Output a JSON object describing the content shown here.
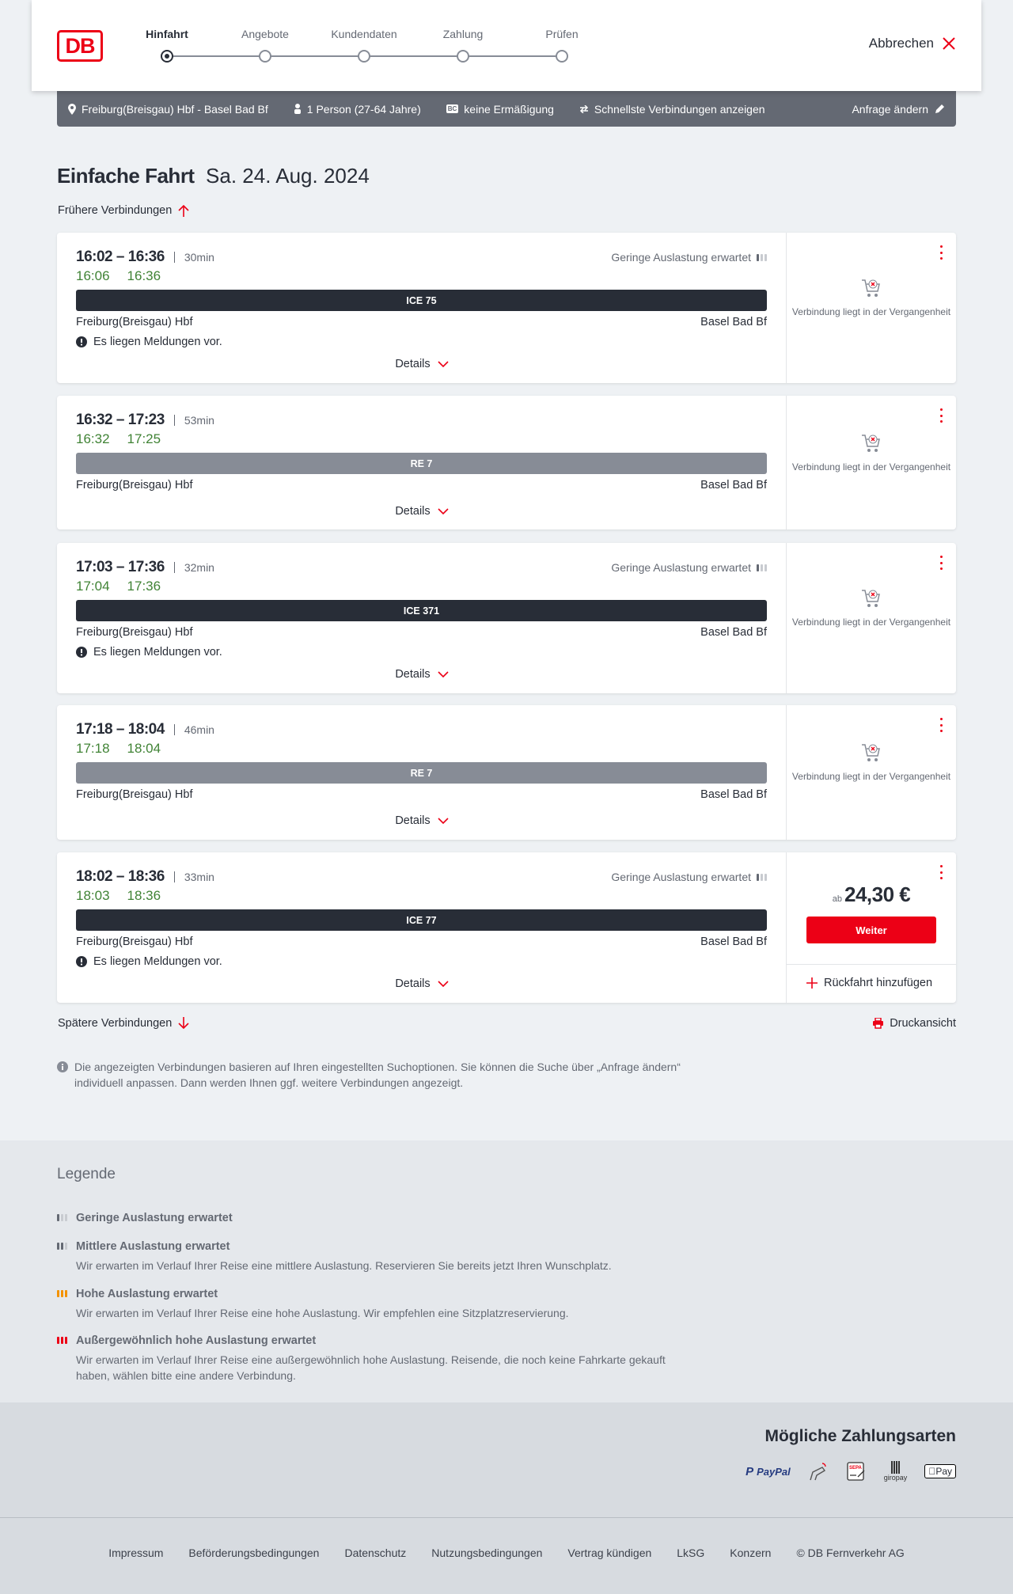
{
  "header": {
    "logo": "DB",
    "steps": [
      {
        "label": "Hinfahrt",
        "active": true
      },
      {
        "label": "Angebote"
      },
      {
        "label": "Kundendaten"
      },
      {
        "label": "Zahlung"
      },
      {
        "label": "Prüfen"
      }
    ],
    "cancel": "Abbrechen"
  },
  "summary": {
    "route": "Freiburg(Breisgau) Hbf - Basel Bad Bf",
    "passengers": "1 Person (27-64 Jahre)",
    "discount_badge": "BC",
    "discount": "keine Ermäßigung",
    "fastest": "Schnellste Verbindungen anzeigen",
    "edit": "Anfrage ändern"
  },
  "title": {
    "main": "Einfache Fahrt",
    "date": "Sa. 24. Aug. 2024"
  },
  "earlier": "Frühere Verbindungen",
  "later": "Spätere Verbindungen",
  "print": "Druckansicht",
  "colors": {
    "red": "#ec0016",
    "green": "#408335",
    "ice": "#282d37",
    "re": "#878c96",
    "bar": "#646973"
  },
  "connections": [
    {
      "times": "16:02 – 16:36",
      "duration": "30min",
      "realtime": [
        "16:06",
        "16:36"
      ],
      "occupancy": "Geringe Auslastung erwartet",
      "train": "ICE 75",
      "type": "ice",
      "from": "Freiburg(Breisgau) Hbf",
      "to": "Basel Bad Bf",
      "message": "Es liegen Meldungen vor.",
      "details": "Details",
      "status": "Verbindung liegt in der Vergangenheit"
    },
    {
      "times": "16:32 – 17:23",
      "duration": "53min",
      "realtime": [
        "16:32",
        "17:25"
      ],
      "occupancy": null,
      "train": "RE 7",
      "type": "re",
      "from": "Freiburg(Breisgau) Hbf",
      "to": "Basel Bad Bf",
      "message": null,
      "details": "Details",
      "status": "Verbindung liegt in der Vergangenheit"
    },
    {
      "times": "17:03 – 17:36",
      "duration": "32min",
      "realtime": [
        "17:04",
        "17:36"
      ],
      "occupancy": "Geringe Auslastung erwartet",
      "train": "ICE 371",
      "type": "ice",
      "from": "Freiburg(Breisgau) Hbf",
      "to": "Basel Bad Bf",
      "message": "Es liegen Meldungen vor.",
      "details": "Details",
      "status": "Verbindung liegt in der Vergangenheit"
    },
    {
      "times": "17:18 – 18:04",
      "duration": "46min",
      "realtime": [
        "17:18",
        "18:04"
      ],
      "occupancy": null,
      "train": "RE 7",
      "type": "re",
      "from": "Freiburg(Breisgau) Hbf",
      "to": "Basel Bad Bf",
      "message": null,
      "details": "Details",
      "status": "Verbindung liegt in der Vergangenheit"
    },
    {
      "times": "18:02 – 18:36",
      "duration": "33min",
      "realtime": [
        "18:03",
        "18:36"
      ],
      "occupancy": "Geringe Auslastung erwartet",
      "train": "ICE 77",
      "type": "ice",
      "from": "Freiburg(Breisgau) Hbf",
      "to": "Basel Bad Bf",
      "message": "Es liegen Meldungen vor.",
      "details": "Details",
      "price_prefix": "ab",
      "price": "24,30 €",
      "continue": "Weiter",
      "return": "Rückfahrt hinzufügen"
    }
  ],
  "info": "Die angezeigten Verbindungen basieren auf Ihren eingestellten Suchoptionen. Sie können die Suche über „Anfrage ändern“ individuell anpassen. Dann werden Ihnen ggf. weitere Verbindungen angezeigt.",
  "legend": {
    "title": "Legende",
    "items": [
      {
        "title": "Geringe Auslastung erwartet",
        "desc": null
      },
      {
        "title": "Mittlere Auslastung erwartet",
        "desc": "Wir erwarten im Verlauf Ihrer Reise eine mittlere Auslastung. Reservieren Sie bereits jetzt Ihren Wunschplatz."
      },
      {
        "title": "Hohe Auslastung erwartet",
        "desc": "Wir erwarten im Verlauf Ihrer Reise eine hohe Auslastung. Wir empfehlen eine Sitzplatzreservierung."
      },
      {
        "title": "Außergewöhnlich hohe Auslastung erwartet",
        "desc": "Wir erwarten im Verlauf Ihrer Reise eine außergewöhnlich hohe Auslastung. Reisende, die noch keine Fahrkarte gekauft haben, wählen bitte eine andere Verbindung."
      }
    ]
  },
  "payment": {
    "title": "Mögliche Zahlungsarten",
    "methods": [
      "PayPal",
      "Kreditkarte",
      "SEPA",
      "giropay",
      "Pay"
    ]
  },
  "footer": {
    "links": [
      "Impressum",
      "Beförderungsbedingungen",
      "Datenschutz",
      "Nutzungsbedingungen",
      "Vertrag kündigen",
      "LkSG",
      "Konzern",
      "© DB Fernverkehr AG"
    ]
  }
}
